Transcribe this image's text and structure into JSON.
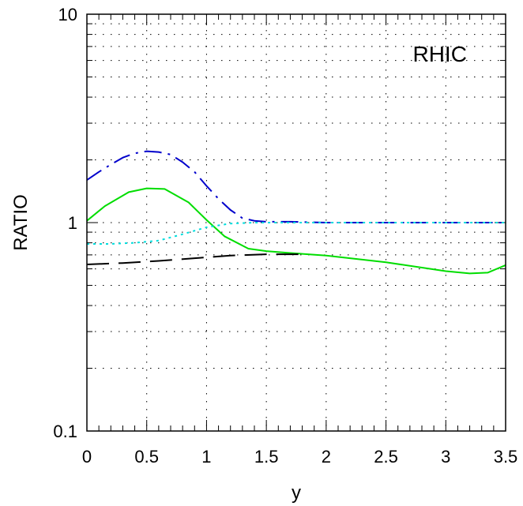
{
  "chart_data": {
    "type": "line",
    "title": "",
    "xlabel": "y",
    "ylabel": "RATIO",
    "annotation": "RHIC",
    "xlim": [
      0,
      3.5
    ],
    "ylim": [
      0.1,
      10
    ],
    "yscale": "log",
    "grid": true,
    "x_ticks": [
      0,
      0.5,
      1,
      1.5,
      2,
      2.5,
      3,
      3.5
    ],
    "x_tick_labels": [
      "0",
      "0.5",
      "1",
      "1.5",
      "2",
      "2.5",
      "3",
      "3.5"
    ],
    "y_ticks": [
      0.1,
      1,
      10
    ],
    "y_tick_labels": [
      "0.1",
      "1",
      "10"
    ],
    "series": [
      {
        "color": "#0000cc",
        "style": "dash-dot",
        "x": [
          0,
          0.1,
          0.2,
          0.3,
          0.4,
          0.5,
          0.6,
          0.7,
          0.8,
          0.9,
          1.0,
          1.1,
          1.2,
          1.3,
          1.4,
          1.5,
          1.7,
          2.0,
          2.5,
          3.0,
          3.5
        ],
        "y": [
          1.6,
          1.75,
          1.9,
          2.05,
          2.15,
          2.2,
          2.18,
          2.12,
          1.95,
          1.75,
          1.5,
          1.3,
          1.15,
          1.05,
          1.02,
          1.01,
          1.01,
          1.0,
          1.0,
          1.0,
          1.0
        ]
      },
      {
        "color": "#00dd00",
        "style": "solid",
        "x": [
          0,
          0.15,
          0.35,
          0.5,
          0.65,
          0.85,
          1.0,
          1.15,
          1.35,
          1.5,
          1.7,
          2.0,
          2.5,
          3.0,
          3.2,
          3.35,
          3.5
        ],
        "y": [
          1.02,
          1.2,
          1.4,
          1.46,
          1.45,
          1.25,
          1.03,
          0.86,
          0.75,
          0.73,
          0.715,
          0.695,
          0.645,
          0.585,
          0.57,
          0.575,
          0.625
        ]
      },
      {
        "color": "#00dddd",
        "style": "dotted",
        "x": [
          0,
          0.2,
          0.4,
          0.6,
          0.8,
          1.0,
          1.2,
          1.4,
          1.6,
          2.0,
          2.5,
          3.0,
          3.5
        ],
        "y": [
          0.79,
          0.79,
          0.8,
          0.82,
          0.88,
          0.95,
          0.99,
          1.0,
          1.0,
          1.0,
          1.0,
          1.0,
          1.0
        ]
      },
      {
        "color": "#000000",
        "style": "long-dash",
        "x": [
          0,
          0.3,
          0.6,
          0.9,
          1.2,
          1.5,
          1.8
        ],
        "y": [
          0.63,
          0.64,
          0.655,
          0.675,
          0.695,
          0.705,
          0.705
        ]
      }
    ]
  }
}
